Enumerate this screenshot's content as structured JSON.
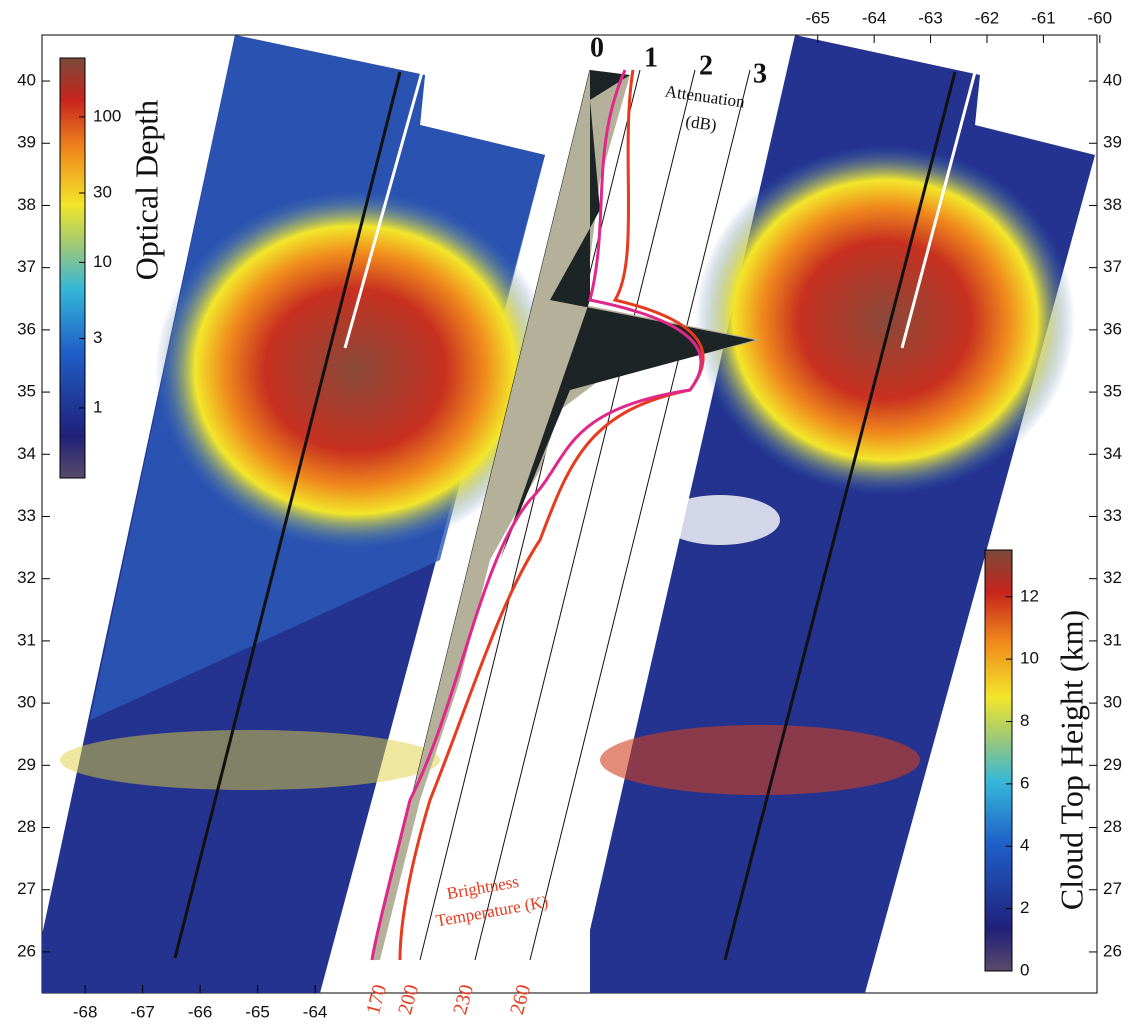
{
  "chart_data": [
    {
      "type": "map",
      "xlim": [
        -68.75,
        -50.4
      ],
      "xticks": [
        -68,
        -67,
        -66,
        -65,
        -64
      ],
      "x2lim": [
        -78.75,
        -60.05
      ],
      "x2ticks": [
        -65,
        -64,
        -63,
        -62,
        -61,
        -60
      ],
      "ylim": [
        25.34,
        40.74
      ],
      "yticks": [
        26,
        27,
        28,
        29,
        30,
        31,
        32,
        33,
        34,
        35,
        36,
        37,
        38,
        39,
        40
      ],
      "y2lim": [
        25.34,
        40.74
      ],
      "y2ticks": [
        26,
        27,
        28,
        29,
        30,
        31,
        32,
        33,
        34,
        35,
        36,
        37,
        38,
        39,
        40
      ]
    },
    {
      "type": "colorbar",
      "label": "Optical Depth",
      "log_scale": true,
      "clim": [
        0.33,
        254
      ],
      "ticks": [
        1,
        3,
        10,
        30,
        100
      ]
    },
    {
      "type": "colorbar",
      "label": "Cloud Top Height (km)",
      "log_scale": false,
      "clim": [
        0,
        13.5
      ],
      "ticks": [
        0,
        2,
        4,
        6,
        8,
        10,
        12
      ]
    },
    {
      "type": "profile",
      "attenuation_label": [
        "Attenuation",
        "(dB)"
      ],
      "attenuation_ticks": [
        0,
        1,
        2,
        3
      ],
      "temperature_label": [
        "Brightness",
        "Temperature (K)"
      ],
      "temperature_ticks": [
        170,
        200,
        230,
        260
      ]
    }
  ]
}
